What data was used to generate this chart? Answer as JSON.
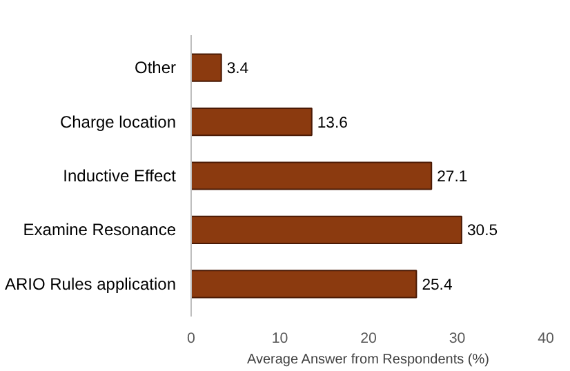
{
  "chart_data": {
    "type": "bar",
    "orientation": "horizontal",
    "categories": [
      "Other",
      "Charge location",
      "Inductive Effect",
      "Examine Resonance",
      "ARIO Rules application"
    ],
    "values": [
      3.4,
      13.6,
      27.1,
      30.5,
      25.4
    ],
    "color": "#8b3a0f",
    "xlabel": "Average Answer from Respondents (%)",
    "xlim": [
      0,
      40
    ],
    "xticks": [
      0,
      10,
      20,
      30,
      40
    ],
    "grid": false,
    "data_labels": true
  }
}
